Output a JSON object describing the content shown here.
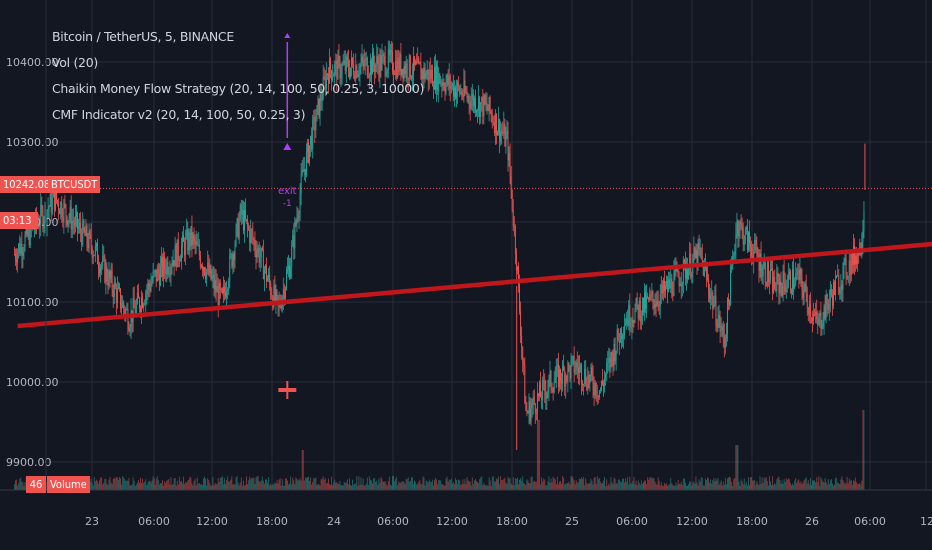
{
  "header": {
    "symbol": "Bitcoin / TetherUS, 5, BINANCE",
    "indicators": [
      "Vol (20)",
      "Chaikin Money Flow Strategy (20, 14, 100, 50, 0.25, 3, 10000)",
      "CMF Indicator v2 (20, 14, 100, 50, 0.25, 3)"
    ]
  },
  "price_tag": {
    "value": "10242.08",
    "countdown": "03:13",
    "ticker": "BTCUSDT"
  },
  "volume_tag": {
    "value": "46",
    "label": "Volume"
  },
  "trade_markers": {
    "exit_label": "exit",
    "exit_pnl": "-1"
  },
  "colors": {
    "up": "#26a69a",
    "down": "#ef5350",
    "trendline": "#c0161c",
    "background": "#131722",
    "grid": "#2a2e39",
    "marker": "#b33bff"
  },
  "chart_data": {
    "type": "candlestick",
    "title": "Bitcoin / TetherUS, 5, BINANCE",
    "y_ticks": [
      10400,
      10300,
      10200,
      10100,
      10000,
      9900
    ],
    "y_tick_labels": [
      "10400.00",
      "10300.00",
      "10200.00",
      "10100.00",
      "10000.00",
      "9900.00"
    ],
    "x_tick_labels": [
      "23",
      "06:00",
      "12:00",
      "18:00",
      "24",
      "06:00",
      "12:00",
      "18:00",
      "25",
      "06:00",
      "12:00",
      "18:00",
      "26",
      "06:00",
      "12:"
    ],
    "ylim": [
      9875,
      10465
    ],
    "last_price": 10242.08,
    "trendline": {
      "start": [
        "22 18:00",
        10070
      ],
      "end": [
        "26 12:00",
        10195
      ]
    },
    "price_path": [
      [
        "22 17:45",
        10160
      ],
      [
        "22 21:00",
        10230
      ],
      [
        "23 00:00",
        10170
      ],
      [
        "23 03:00",
        10080
      ],
      [
        "23 05:00",
        10130
      ],
      [
        "23 08:00",
        10180
      ],
      [
        "23 10:30",
        10100
      ],
      [
        "23 12:00",
        10210
      ],
      [
        "23 13:30",
        10160
      ],
      [
        "23 15:00",
        10090
      ],
      [
        "23 16:00",
        10150
      ],
      [
        "23 17:00",
        10260
      ],
      [
        "23 19:00",
        10390
      ],
      [
        "24 00:00",
        10400
      ],
      [
        "24 04:00",
        10380
      ],
      [
        "24 08:00",
        10340
      ],
      [
        "24 09:30",
        10300
      ],
      [
        "24 10:15",
        10150
      ],
      [
        "24 11:00",
        9960
      ],
      [
        "24 13:00",
        10000
      ],
      [
        "24 15:00",
        10020
      ],
      [
        "24 17:00",
        9990
      ],
      [
        "24 19:00",
        10080
      ],
      [
        "24 22:00",
        10110
      ],
      [
        "25 01:00",
        10160
      ],
      [
        "25 03:00",
        10050
      ],
      [
        "25 04:00",
        10200
      ],
      [
        "25 07:00",
        10120
      ],
      [
        "25 09:00",
        10130
      ],
      [
        "25 10:30",
        10070
      ],
      [
        "25 12:00",
        10120
      ],
      [
        "25 14:00",
        10170
      ],
      [
        "25 14:20",
        10240
      ]
    ],
    "volume": {
      "series_name": "Volume",
      "last": 46,
      "spikes": [
        [
          "23 17:00",
          40
        ],
        [
          "24 12:00",
          70
        ],
        [
          "25 04:00",
          45
        ],
        [
          "25 14:15",
          80
        ]
      ]
    }
  }
}
